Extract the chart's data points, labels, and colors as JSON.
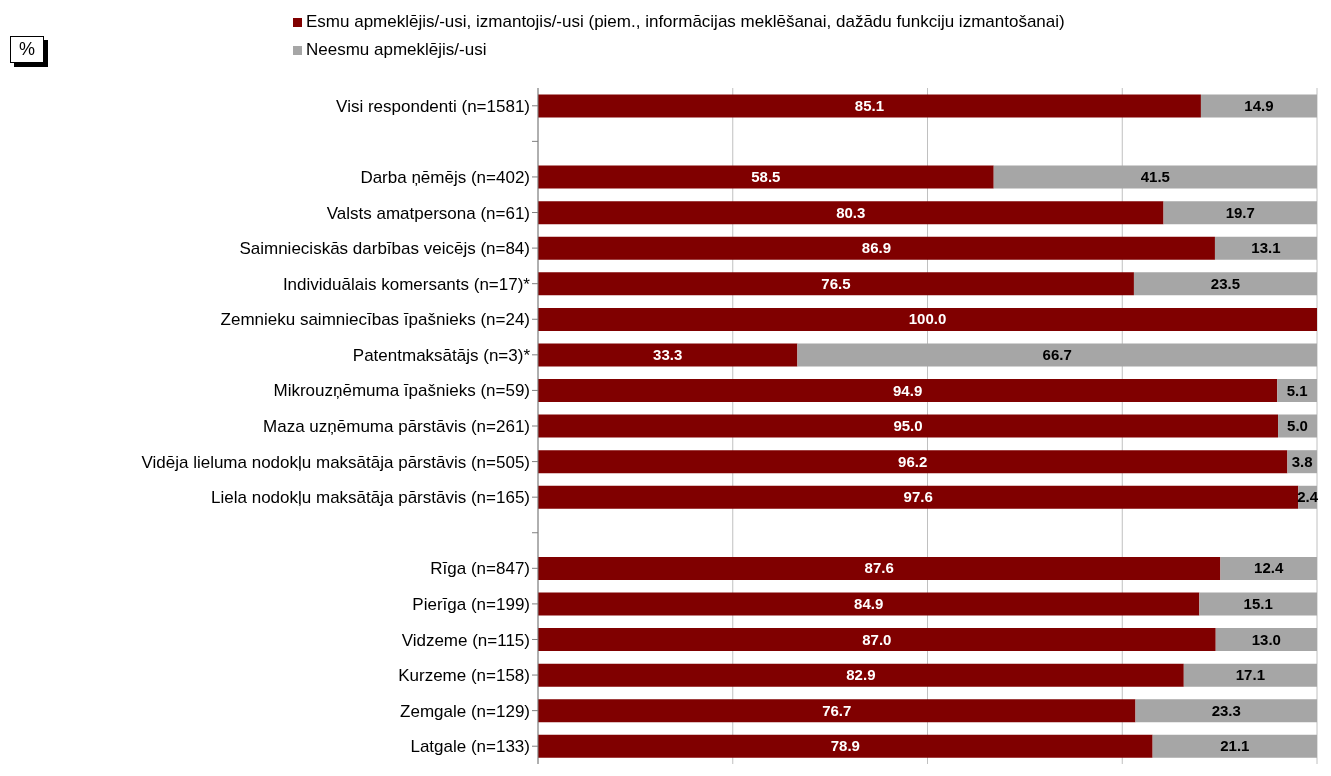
{
  "chart_data": {
    "type": "bar",
    "orientation": "horizontal",
    "stacked": true,
    "categories": [
      "Visi respondenti (n=1581)",
      null,
      "Darba ņēmējs (n=402)",
      "Valsts amatpersona (n=61)",
      "Saimnieciskās darbības veicējs (n=84)",
      "Individuālais komersants (n=17)*",
      "Zemnieku saimniecības īpašnieks (n=24)",
      "Patentmaksātājs (n=3)*",
      "Mikrouzņēmuma īpašnieks (n=59)",
      "Maza uzņēmuma pārstāvis (n=261)",
      "Vidēja lieluma nodokļu maksātāja pārstāvis (n=505)",
      "Liela nodokļu maksātāja pārstāvis (n=165)",
      null,
      "Rīga (n=847)",
      "Pierīga (n=199)",
      "Vidzeme (n=115)",
      "Kurzeme (n=158)",
      "Zemgale (n=129)",
      "Latgale (n=133)"
    ],
    "series": [
      {
        "name": "Esmu apmeklējis/-usi, izmantojis/-usi (piem., informācijas meklēšanai, dažādu funkciju izmantošanai)",
        "color": "#800000",
        "values": [
          85.1,
          null,
          58.5,
          80.3,
          86.9,
          76.5,
          100.0,
          33.3,
          94.9,
          95.0,
          96.2,
          97.6,
          null,
          87.6,
          84.9,
          87.0,
          82.9,
          76.7,
          78.9
        ],
        "value_labels": [
          "85.1",
          null,
          "58.5",
          "80.3",
          "86.9",
          "76.5",
          "100.0",
          "33.3",
          "94.9",
          "95.0",
          "96.2",
          "97.6",
          null,
          "87.6",
          "84.9",
          "87.0",
          "82.9",
          "76.7",
          "78.9"
        ]
      },
      {
        "name": "Neesmu apmeklējis/-usi",
        "color": "#a6a6a6",
        "values": [
          14.9,
          null,
          41.5,
          19.7,
          13.1,
          23.5,
          0,
          66.7,
          5.1,
          5.0,
          3.8,
          2.4,
          null,
          12.4,
          15.1,
          13.0,
          17.1,
          23.3,
          21.1
        ],
        "value_labels": [
          "14.9",
          null,
          "41.5",
          "19.7",
          "13.1",
          "23.5",
          null,
          "66.7",
          "5.1",
          "5.0",
          "3.8",
          "2.4",
          null,
          "12.4",
          "15.1",
          "13.0",
          "17.1",
          "23.3",
          "21.1"
        ]
      }
    ],
    "xlim": [
      0,
      100
    ],
    "xticks": [
      {
        "value": 25,
        "label": null
      },
      {
        "value": 50,
        "label": null
      },
      {
        "value": 75,
        "label": null
      },
      {
        "value": 100,
        "label": null
      }
    ],
    "grid": "x",
    "legend": "top",
    "tick_labels": "y",
    "annotations": [
      "%"
    ]
  }
}
